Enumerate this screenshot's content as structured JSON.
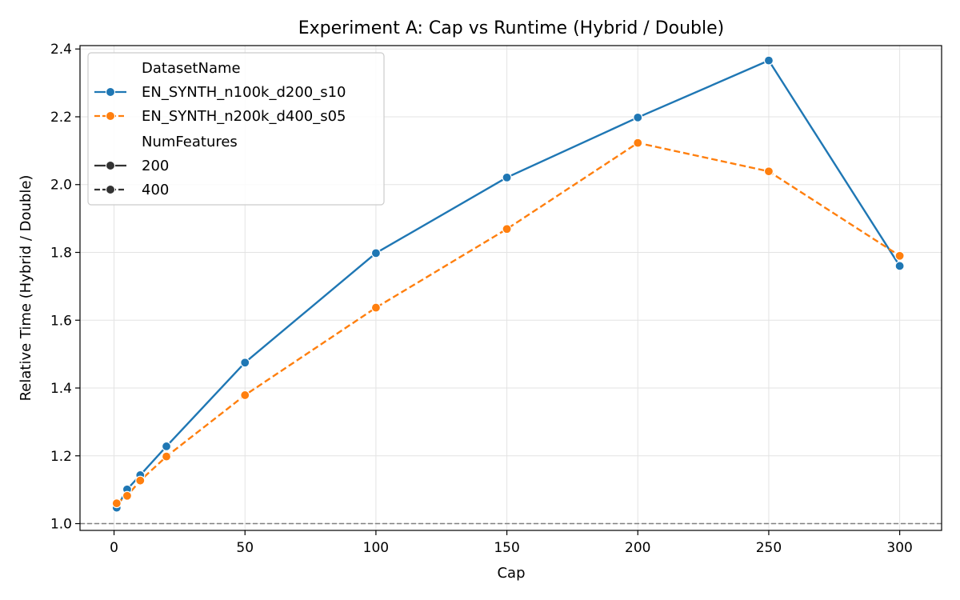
{
  "chart_data": {
    "type": "line",
    "title": "Experiment A: Cap vs Runtime (Hybrid / Double)",
    "xlabel": "Cap",
    "ylabel": "Relative Time (Hybrid / Double)",
    "xlim": [
      -13,
      316
    ],
    "ylim": [
      0.98,
      2.41
    ],
    "xticks": [
      0,
      50,
      100,
      150,
      200,
      250,
      300
    ],
    "yticks": [
      1.0,
      1.2,
      1.4,
      1.6,
      1.8,
      2.0,
      2.2,
      2.4
    ],
    "ytick_labels": [
      "1.0",
      "1.2",
      "1.4",
      "1.6",
      "1.8",
      "2.0",
      "2.2",
      "2.4"
    ],
    "grid": true,
    "reference_line": {
      "y": 1.0,
      "style": "dashed",
      "color": "#808080"
    },
    "legend": {
      "placement": "top-left",
      "hue_title": "DatasetName",
      "style_title": "NumFeatures",
      "style_entries": [
        {
          "label": "200",
          "dash": "solid"
        },
        {
          "label": "400",
          "dash": "dashed"
        }
      ]
    },
    "series": [
      {
        "name": "EN_SYNTH_n100k_d200_s10",
        "color": "#1f77b4",
        "dash": "solid",
        "x": [
          1,
          5,
          10,
          20,
          50,
          100,
          150,
          200,
          250,
          300
        ],
        "y": [
          1.047,
          1.101,
          1.143,
          1.228,
          1.475,
          1.798,
          2.021,
          2.198,
          2.366,
          1.76
        ]
      },
      {
        "name": "EN_SYNTH_n200k_d400_s05",
        "color": "#ff7f0e",
        "dash": "dashed",
        "x": [
          1,
          5,
          10,
          20,
          50,
          100,
          150,
          200,
          250,
          300
        ],
        "y": [
          1.06,
          1.082,
          1.127,
          1.198,
          1.379,
          1.637,
          1.869,
          2.123,
          2.039,
          1.79
        ]
      }
    ]
  }
}
